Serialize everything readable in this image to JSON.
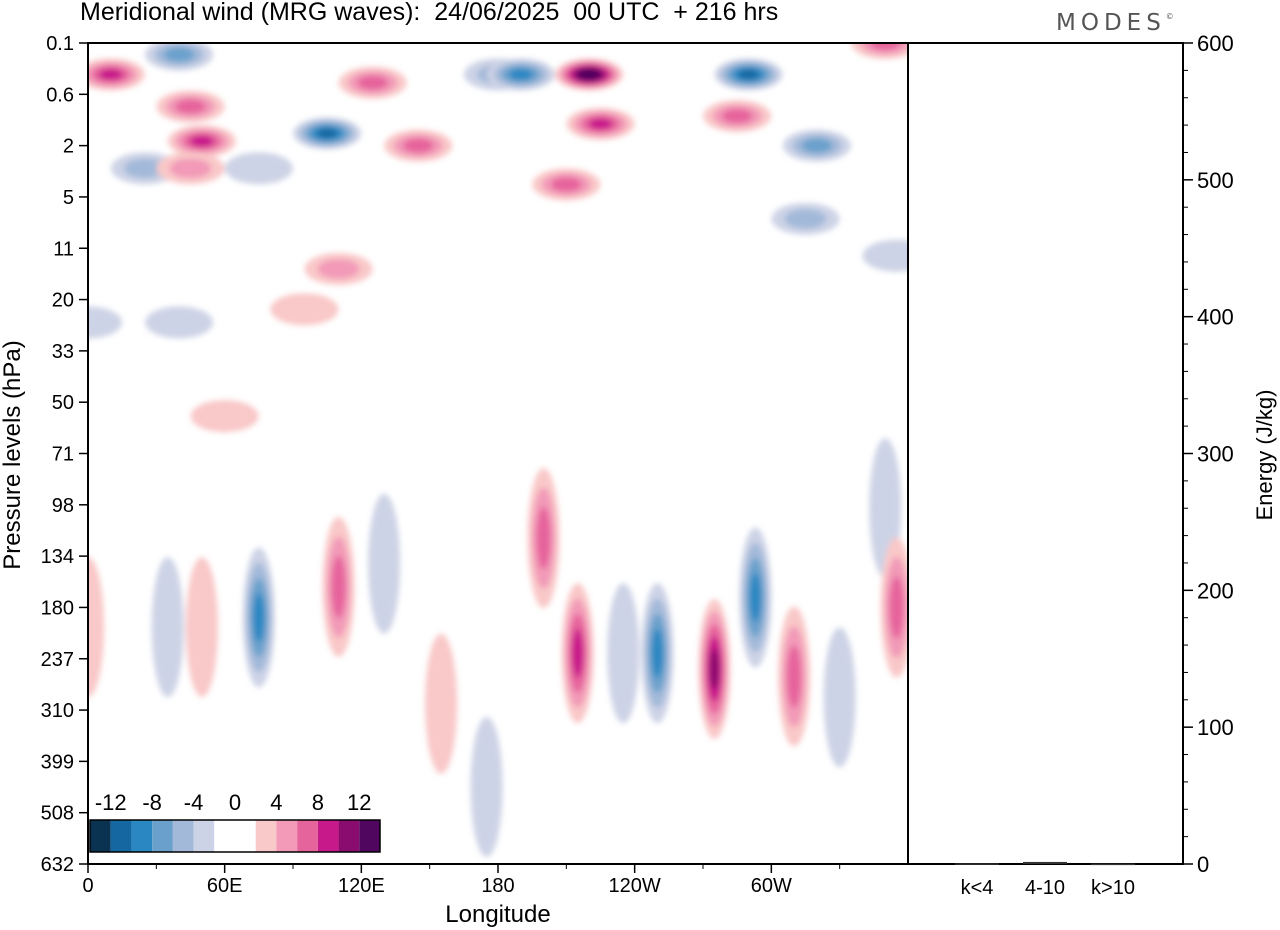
{
  "title": "Meridional wind (MRG waves):  24/06/2025  00 UTC  + 216 hrs",
  "logo": "MODES",
  "chart_data": [
    {
      "type": "heatmap",
      "variable": "Meridional wind (MRG waves)",
      "xlabel": "Longitude",
      "ylabel": "Pressure levels (hPa)",
      "x_ticks": [
        "0",
        "60E",
        "120E",
        "180",
        "120W",
        "60W"
      ],
      "x_tick_degrees": [
        0,
        60,
        120,
        180,
        240,
        300
      ],
      "xlim": [
        0,
        360
      ],
      "y_ticks": [
        "0.1",
        "0.6",
        "2",
        "5",
        "11",
        "20",
        "33",
        "50",
        "71",
        "98",
        "134",
        "180",
        "237",
        "310",
        "399",
        "508",
        "632"
      ],
      "colorbar": {
        "labels": [
          "-12",
          "-8",
          "-4",
          "0",
          "4",
          "8",
          "12"
        ],
        "colors": [
          "#0a3352",
          "#1467a0",
          "#2b87c2",
          "#6aa1cc",
          "#a3b9d9",
          "#cdd3e6",
          "#ffffff",
          "#ffffff",
          "#f9c8c8",
          "#f29ab8",
          "#e6649c",
          "#c8198b",
          "#8a0c6e",
          "#50065e"
        ]
      },
      "features": [
        {
          "lon": 10,
          "p": 0.3,
          "v": 9
        },
        {
          "lon": 25,
          "p": 3,
          "v": -5
        },
        {
          "lon": 40,
          "p": 0.15,
          "v": -6
        },
        {
          "lon": 45,
          "p": 0.8,
          "v": 7
        },
        {
          "lon": 50,
          "p": 1.8,
          "v": 9
        },
        {
          "lon": 45,
          "p": 3,
          "v": 5
        },
        {
          "lon": 75,
          "p": 3,
          "v": -3
        },
        {
          "lon": 105,
          "p": 1.5,
          "v": -10
        },
        {
          "lon": 125,
          "p": 0.4,
          "v": 6
        },
        {
          "lon": 145,
          "p": 2,
          "v": 6
        },
        {
          "lon": 180,
          "p": 0.3,
          "v": -5
        },
        {
          "lon": 190,
          "p": 0.3,
          "v": -9
        },
        {
          "lon": 220,
          "p": 0.3,
          "v": 14
        },
        {
          "lon": 225,
          "p": 1.2,
          "v": 8
        },
        {
          "lon": 210,
          "p": 4,
          "v": 6
        },
        {
          "lon": 290,
          "p": 0.3,
          "v": -11
        },
        {
          "lon": 285,
          "p": 1,
          "v": 7
        },
        {
          "lon": 320,
          "p": 2,
          "v": -6
        },
        {
          "lon": 315,
          "p": 7,
          "v": -5
        },
        {
          "lon": 350,
          "p": 0.1,
          "v": 6
        },
        {
          "lon": 355,
          "p": 12,
          "v": -3
        },
        {
          "lon": 110,
          "p": 14,
          "v": 4
        },
        {
          "lon": 40,
          "p": 25,
          "v": -2
        },
        {
          "lon": 0,
          "p": 25,
          "v": -2
        },
        {
          "lon": 95,
          "p": 22,
          "v": 3
        },
        {
          "lon": 60,
          "p": 55,
          "v": 2
        },
        {
          "lon": 350,
          "p": 100,
          "v": -3
        },
        {
          "lon": 0,
          "p": 200,
          "v": 3
        },
        {
          "lon": 35,
          "p": 200,
          "v": -2
        },
        {
          "lon": 50,
          "p": 200,
          "v": 3
        },
        {
          "lon": 75,
          "p": 190,
          "v": -9
        },
        {
          "lon": 110,
          "p": 160,
          "v": 6
        },
        {
          "lon": 130,
          "p": 140,
          "v": -2
        },
        {
          "lon": 155,
          "p": 300,
          "v": 3
        },
        {
          "lon": 175,
          "p": 450,
          "v": -3
        },
        {
          "lon": 200,
          "p": 120,
          "v": 6
        },
        {
          "lon": 215,
          "p": 230,
          "v": 9
        },
        {
          "lon": 235,
          "p": 230,
          "v": -3
        },
        {
          "lon": 250,
          "p": 230,
          "v": -8
        },
        {
          "lon": 275,
          "p": 250,
          "v": 10
        },
        {
          "lon": 293,
          "p": 170,
          "v": -9
        },
        {
          "lon": 310,
          "p": 260,
          "v": 6
        },
        {
          "lon": 330,
          "p": 290,
          "v": -3
        },
        {
          "lon": 355,
          "p": 180,
          "v": 6
        }
      ]
    },
    {
      "type": "bar",
      "categories": [
        "k<4",
        "4-10",
        "k>10"
      ],
      "values": [
        0.5,
        1.5,
        0.3
      ],
      "ylabel": "Energy (J/kg)",
      "ylim": [
        0,
        600
      ],
      "y_ticks": [
        0,
        100,
        200,
        300,
        400,
        500,
        600
      ]
    }
  ]
}
